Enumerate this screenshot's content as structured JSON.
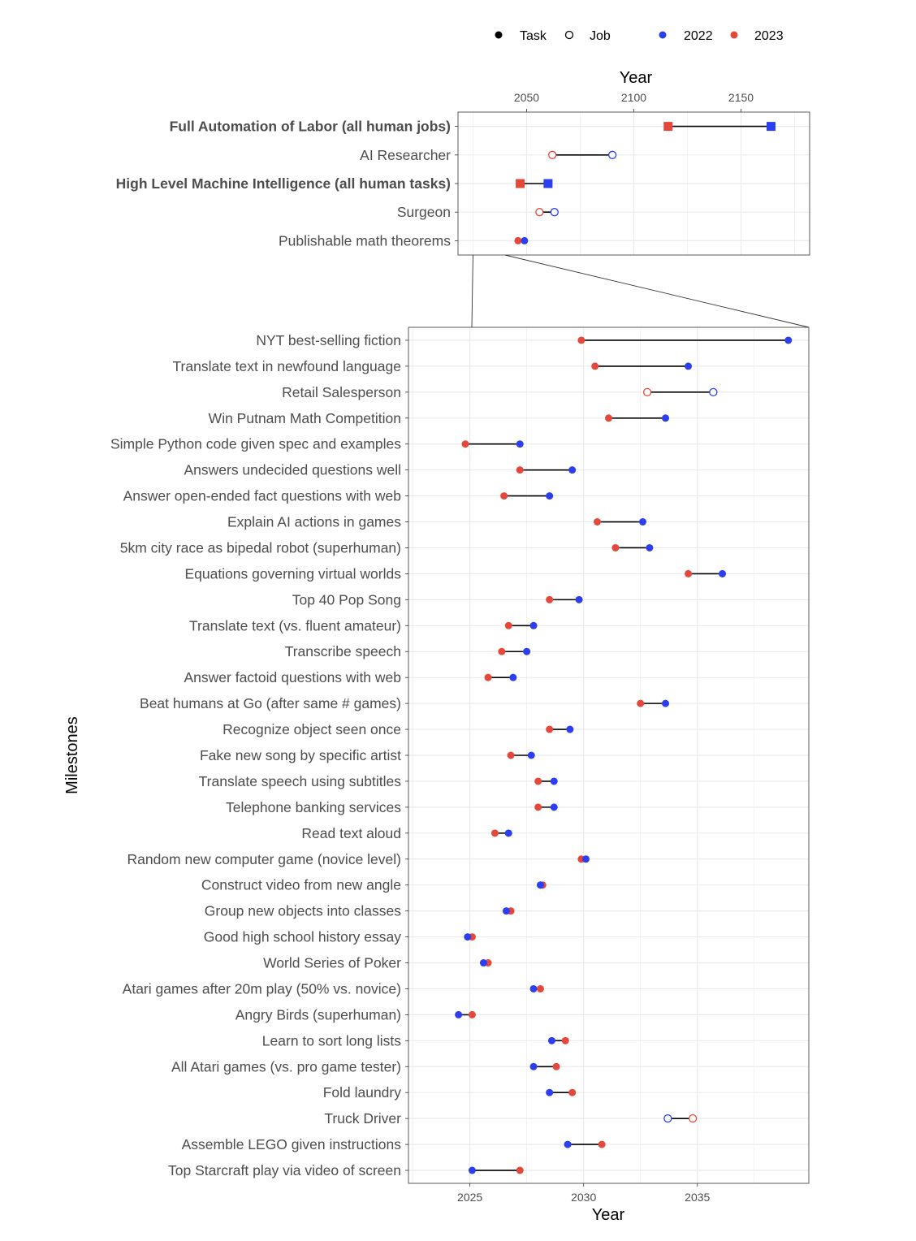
{
  "legend": {
    "task_label": "Task",
    "job_label": "Job",
    "year_2022_label": "2022",
    "year_2023_label": "2023"
  },
  "colors": {
    "y2022": "#2b3ff0",
    "y2023": "#e5483a",
    "grid": "#ebebeb",
    "text": "#4d4d4d",
    "segment": "#000000"
  },
  "chart_data": [
    {
      "type": "dumbbell",
      "name": "overview",
      "xlabel": "Year",
      "ylabel": "",
      "xlim": [
        2018,
        2182
      ],
      "xticks": [
        2050,
        2100,
        2150
      ],
      "x_axis_position": "top",
      "grid": true,
      "rows": [
        {
          "label": "Full Automation of Labor (all human jobs)",
          "bold": true,
          "kind": "aggregate",
          "y2022": 2164,
          "y2023": 2116
        },
        {
          "label": "AI Researcher",
          "bold": false,
          "kind": "job",
          "y2022": 2090,
          "y2023": 2062
        },
        {
          "label": "High Level Machine Intelligence (all human tasks)",
          "bold": true,
          "kind": "aggregate",
          "y2022": 2060,
          "y2023": 2047
        },
        {
          "label": "Surgeon",
          "bold": false,
          "kind": "job",
          "y2022": 2063,
          "y2023": 2056
        },
        {
          "label": "Publishable math theorems",
          "bold": false,
          "kind": "task",
          "y2022": 2049,
          "y2023": 2046
        }
      ]
    },
    {
      "type": "dumbbell",
      "name": "zoomed",
      "xlabel": "Year",
      "ylabel": "Milestones",
      "xlim": [
        2022.3,
        2039.9
      ],
      "xticks": [
        2025,
        2030,
        2035
      ],
      "x_axis_position": "bottom",
      "grid": true,
      "rows": [
        {
          "label": "NYT best-selling fiction",
          "kind": "task",
          "y2022": 2039.0,
          "y2023": 2029.9
        },
        {
          "label": "Translate text in newfound language",
          "kind": "task",
          "y2022": 2034.6,
          "y2023": 2030.5
        },
        {
          "label": "Retail Salesperson",
          "kind": "job",
          "y2022": 2035.7,
          "y2023": 2032.8
        },
        {
          "label": "Win Putnam Math Competition",
          "kind": "task",
          "y2022": 2033.6,
          "y2023": 2031.1
        },
        {
          "label": "Simple Python code given spec and examples",
          "kind": "task",
          "y2022": 2027.2,
          "y2023": 2024.8
        },
        {
          "label": "Answers undecided questions well",
          "kind": "task",
          "y2022": 2029.5,
          "y2023": 2027.2
        },
        {
          "label": "Answer open-ended fact questions with web",
          "kind": "task",
          "y2022": 2028.5,
          "y2023": 2026.5
        },
        {
          "label": "Explain AI actions in games",
          "kind": "task",
          "y2022": 2032.6,
          "y2023": 2030.6
        },
        {
          "label": "5km city race as bipedal robot (superhuman)",
          "kind": "task",
          "y2022": 2032.9,
          "y2023": 2031.4
        },
        {
          "label": "Equations governing virtual worlds",
          "kind": "task",
          "y2022": 2036.1,
          "y2023": 2034.6
        },
        {
          "label": "Top 40 Pop Song",
          "kind": "task",
          "y2022": 2029.8,
          "y2023": 2028.5
        },
        {
          "label": "Translate text (vs. fluent amateur)",
          "kind": "task",
          "y2022": 2027.8,
          "y2023": 2026.7
        },
        {
          "label": "Transcribe speech",
          "kind": "task",
          "y2022": 2027.5,
          "y2023": 2026.4
        },
        {
          "label": "Answer factoid questions with web",
          "kind": "task",
          "y2022": 2026.9,
          "y2023": 2025.8
        },
        {
          "label": "Beat humans at Go (after same # games)",
          "kind": "task",
          "y2022": 2033.6,
          "y2023": 2032.5
        },
        {
          "label": "Recognize object seen once",
          "kind": "task",
          "y2022": 2029.4,
          "y2023": 2028.5
        },
        {
          "label": "Fake new song by specific artist",
          "kind": "task",
          "y2022": 2027.7,
          "y2023": 2026.8
        },
        {
          "label": "Translate speech using subtitles",
          "kind": "task",
          "y2022": 2028.7,
          "y2023": 2028.0
        },
        {
          "label": "Telephone banking services",
          "kind": "task",
          "y2022": 2028.7,
          "y2023": 2028.0
        },
        {
          "label": "Read text aloud",
          "kind": "task",
          "y2022": 2026.7,
          "y2023": 2026.1
        },
        {
          "label": "Random new computer game (novice level)",
          "kind": "task",
          "y2022": 2030.1,
          "y2023": 2029.9
        },
        {
          "label": "Construct video from new angle",
          "kind": "task",
          "y2022": 2028.1,
          "y2023": 2028.2
        },
        {
          "label": "Group new objects into classes",
          "kind": "task",
          "y2022": 2026.6,
          "y2023": 2026.8
        },
        {
          "label": "Good high school history essay",
          "kind": "task",
          "y2022": 2024.9,
          "y2023": 2025.1
        },
        {
          "label": "World Series of Poker",
          "kind": "task",
          "y2022": 2025.6,
          "y2023": 2025.8
        },
        {
          "label": "Atari games after 20m play (50% vs. novice)",
          "kind": "task",
          "y2022": 2027.8,
          "y2023": 2028.1
        },
        {
          "label": "Angry Birds (superhuman)",
          "kind": "task",
          "y2022": 2024.5,
          "y2023": 2025.1
        },
        {
          "label": "Learn to sort long lists",
          "kind": "task",
          "y2022": 2028.6,
          "y2023": 2029.2
        },
        {
          "label": "All Atari games (vs. pro game tester)",
          "kind": "task",
          "y2022": 2027.8,
          "y2023": 2028.8
        },
        {
          "label": "Fold laundry",
          "kind": "task",
          "y2022": 2028.5,
          "y2023": 2029.5
        },
        {
          "label": "Truck Driver",
          "kind": "job",
          "y2022": 2033.7,
          "y2023": 2034.8
        },
        {
          "label": "Assemble LEGO given instructions",
          "kind": "task",
          "y2022": 2029.3,
          "y2023": 2030.8
        },
        {
          "label": "Top Starcraft play via video of screen",
          "kind": "task",
          "y2022": 2025.1,
          "y2023": 2027.2
        }
      ]
    }
  ]
}
